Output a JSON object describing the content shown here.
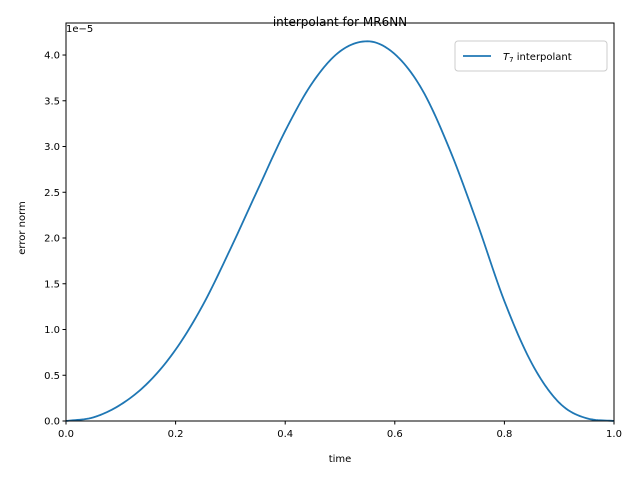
{
  "chart_data": {
    "type": "line",
    "title": "interpolant for MR6NN",
    "xlabel": "time",
    "ylabel": "error norm",
    "xlim": [
      0.0,
      1.0
    ],
    "ylim": [
      0.0,
      4.35
    ],
    "y_multiplier_label": "1e−5",
    "x_ticks": [
      "0.0",
      "0.2",
      "0.4",
      "0.6",
      "0.8",
      "1.0"
    ],
    "y_ticks": [
      "0.0",
      "0.5",
      "1.0",
      "1.5",
      "2.0",
      "2.5",
      "3.0",
      "3.5",
      "4.0"
    ],
    "grid": false,
    "legend_position": "top-right",
    "series": [
      {
        "name_math": "T",
        "name_sub": "7",
        "name_text": " interpolant",
        "color": "#1f77b4",
        "x": [
          0.0,
          0.05,
          0.1,
          0.15,
          0.2,
          0.25,
          0.3,
          0.35,
          0.4,
          0.45,
          0.5,
          0.55,
          0.6,
          0.65,
          0.7,
          0.75,
          0.8,
          0.85,
          0.9,
          0.95,
          1.0
        ],
        "y": [
          0.0,
          0.04,
          0.18,
          0.42,
          0.78,
          1.27,
          1.88,
          2.53,
          3.17,
          3.7,
          4.04,
          4.15,
          4.01,
          3.62,
          2.97,
          2.17,
          1.31,
          0.63,
          0.2,
          0.03,
          0.0
        ]
      }
    ]
  }
}
